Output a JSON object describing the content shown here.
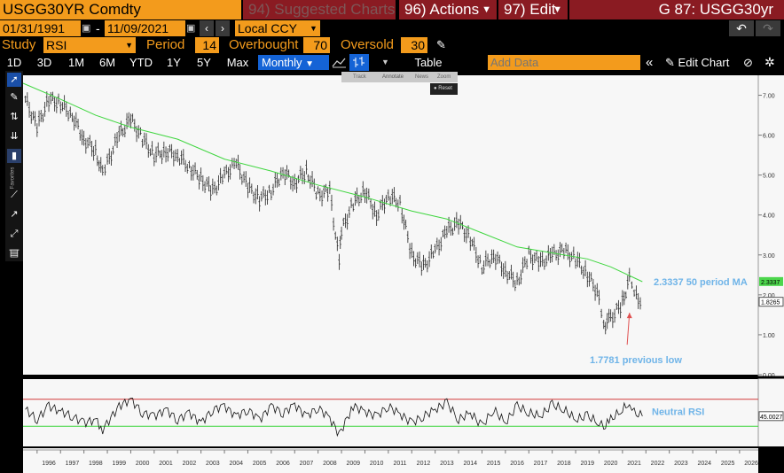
{
  "header": {
    "ticker": "USGG30YR Comdty",
    "suggested": "94) Suggested Charts",
    "actions": "96) Actions",
    "edit": "97) Edit",
    "title": "G 87: USGG30yr"
  },
  "dates": {
    "start": "01/31/1991",
    "sep": "-",
    "end": "11/09/2021",
    "currency": "Local CCY"
  },
  "study": {
    "label": "Study",
    "value": "RSI",
    "period_label": "Period",
    "period": "14",
    "overbought_label": "Overbought",
    "overbought": "70",
    "oversold_label": "Oversold",
    "oversold": "30"
  },
  "toolbar": {
    "ranges": [
      "1D",
      "3D",
      "1M",
      "6M",
      "YTD",
      "1Y",
      "5Y",
      "Max"
    ],
    "frequency": "Monthly",
    "table": "Table",
    "add_data_placeholder": "Add Data",
    "edit_chart": "Edit Chart"
  },
  "mini_toolbar": {
    "track": "Track",
    "annotate": "Annotate",
    "news": "News",
    "zoom": "Zoom",
    "reset": "Reset"
  },
  "annotations": {
    "ma": "2.3337 50 period MA",
    "low": "1.7781 previous low",
    "rsi": "Neutral RSI"
  },
  "right_axis": {
    "price_ticks": [
      "7.00",
      "6.00",
      "5.00",
      "4.00",
      "3.00",
      "2.00",
      "1.00",
      "0.00"
    ],
    "ma_tag": "2.3337",
    "last_tag": "1.8265",
    "rsi_tag": "45.0027"
  },
  "x_axis": {
    "years": [
      "1996",
      "1997",
      "1998",
      "1999",
      "2000",
      "2001",
      "2002",
      "2003",
      "2004",
      "2005",
      "2006",
      "2007",
      "2008",
      "2009",
      "2010",
      "2011",
      "2012",
      "2013",
      "2014",
      "2015",
      "2016",
      "2017",
      "2018",
      "2019",
      "2020",
      "2021",
      "2022",
      "2023",
      "2024",
      "2025",
      "2026"
    ]
  },
  "colors": {
    "amber": "#f39b1c",
    "maroon": "#8a1b22",
    "blue_active": "#1463d6",
    "ma_line": "#3fd63f",
    "annotation": "#6fb4e8",
    "overbought_line": "#d43a3a",
    "oversold_line": "#3fd63f"
  },
  "chart_data": {
    "type": "line",
    "title": "USGG30YR Comdty",
    "frequency": "monthly",
    "y_range": [
      0,
      7.5
    ],
    "x_range": [
      1995.4,
      2026.8
    ],
    "series": [
      {
        "name": "",
        "style": "ohlc-bars",
        "x": [
          1995.5,
          1996.0,
          1996.5,
          1997.0,
          1997.5,
          1998.0,
          1998.5,
          1998.8,
          1999.0,
          1999.5,
          2000.0,
          2000.5,
          2001.0,
          2001.5,
          2002.0,
          2002.5,
          2003.0,
          2003.5,
          2004.0,
          2004.5,
          2005.0,
          2005.5,
          2006.0,
          2006.5,
          2007.0,
          2007.5,
          2008.0,
          2008.5,
          2008.9,
          2009.0,
          2009.5,
          2010.0,
          2010.5,
          2011.0,
          2011.5,
          2012.0,
          2012.5,
          2013.0,
          2013.5,
          2014.0,
          2014.5,
          2015.0,
          2015.5,
          2016.0,
          2016.5,
          2017.0,
          2017.5,
          2018.0,
          2018.5,
          2019.0,
          2019.5,
          2020.0,
          2020.2,
          2020.5,
          2021.0,
          2021.3,
          2021.5,
          2021.85
        ],
        "y": [
          6.9,
          6.2,
          6.9,
          6.8,
          6.5,
          5.9,
          5.6,
          5.0,
          5.3,
          6.0,
          6.4,
          5.9,
          5.5,
          5.6,
          5.5,
          5.2,
          4.9,
          4.6,
          5.0,
          5.3,
          4.7,
          4.4,
          4.6,
          5.1,
          4.8,
          5.1,
          4.5,
          4.6,
          2.8,
          3.6,
          4.3,
          4.6,
          4.0,
          4.5,
          4.3,
          3.0,
          2.7,
          3.1,
          3.6,
          3.8,
          3.4,
          2.7,
          3.0,
          2.6,
          2.3,
          3.0,
          2.8,
          3.0,
          3.1,
          2.9,
          2.5,
          2.0,
          1.25,
          1.4,
          1.8,
          2.4,
          2.0,
          1.83
        ]
      },
      {
        "name": "",
        "style": "line",
        "x": [
          1995.4,
          1997.0,
          1998.5,
          2000.0,
          2002.0,
          2004.0,
          2006.0,
          2008.0,
          2010.0,
          2012.0,
          2013.5,
          2015.0,
          2016.5,
          2018.0,
          2019.5,
          2020.5,
          2021.85
        ],
        "y": [
          7.3,
          6.9,
          6.5,
          6.2,
          5.9,
          5.4,
          5.1,
          4.75,
          4.45,
          4.1,
          3.9,
          3.55,
          3.2,
          3.05,
          2.9,
          2.7,
          2.33
        ]
      },
      {
        "name": "",
        "style": "line",
        "panel": "RSI",
        "y_range": [
          0,
          100
        ],
        "x": [
          1995.5,
          1996.0,
          1996.5,
          1997.0,
          1997.5,
          1998.0,
          1998.5,
          1998.8,
          1999.5,
          2000.0,
          2000.5,
          2001.0,
          2001.5,
          2002.0,
          2002.5,
          2003.0,
          2003.5,
          2004.0,
          2004.5,
          2005.0,
          2005.5,
          2006.0,
          2006.5,
          2007.0,
          2007.5,
          2008.0,
          2008.5,
          2008.9,
          2009.5,
          2010.0,
          2010.5,
          2011.0,
          2011.5,
          2012.0,
          2012.5,
          2013.0,
          2013.5,
          2014.0,
          2014.5,
          2015.0,
          2015.5,
          2016.0,
          2016.5,
          2017.0,
          2017.5,
          2018.0,
          2018.5,
          2019.0,
          2019.5,
          2020.0,
          2020.2,
          2020.5,
          2021.0,
          2021.3,
          2021.5,
          2021.85
        ],
        "y": [
          55,
          40,
          60,
          52,
          45,
          35,
          40,
          25,
          60,
          70,
          50,
          45,
          55,
          40,
          50,
          35,
          55,
          60,
          45,
          55,
          40,
          60,
          50,
          62,
          45,
          58,
          42,
          18,
          60,
          52,
          45,
          60,
          48,
          35,
          45,
          55,
          65,
          40,
          50,
          30,
          55,
          35,
          60,
          50,
          45,
          62,
          55,
          40,
          45,
          35,
          28,
          40,
          55,
          65,
          50,
          45
        ]
      }
    ],
    "reference_lines": {
      "overbought": 70,
      "oversold": 30
    }
  }
}
